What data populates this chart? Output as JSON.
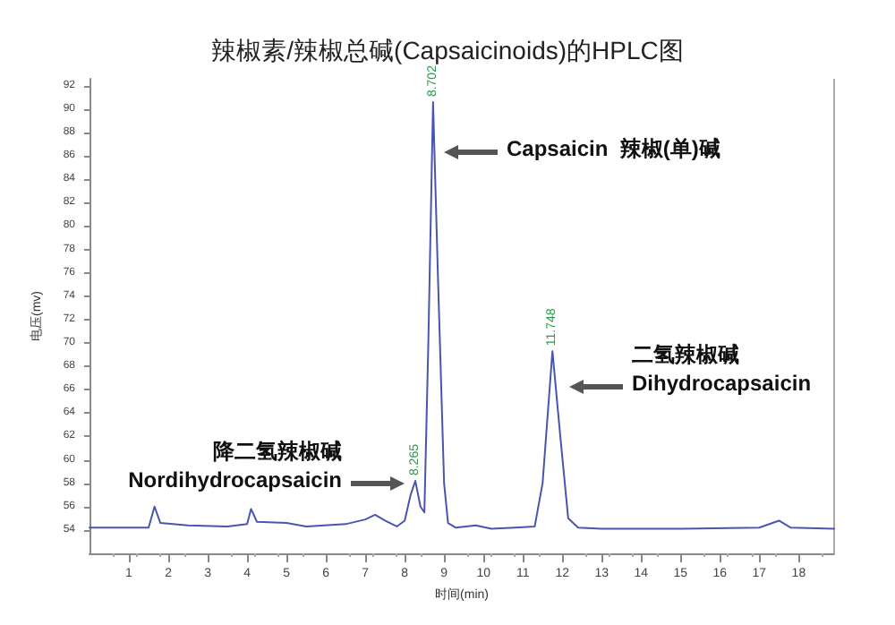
{
  "chart_data": {
    "type": "line",
    "title": "辣椒素/辣椒总碱(Capsaicinoids)的HPLC图",
    "xlabel": "时间(min)",
    "ylabel": "电压(mv)",
    "xlim": [
      0,
      18.9
    ],
    "xticks": [
      1,
      2,
      3,
      4,
      5,
      6,
      7,
      8,
      9,
      10,
      11,
      12,
      13,
      14,
      15,
      16,
      17,
      18
    ],
    "ylim": [
      52,
      92.6
    ],
    "yticks": [
      54,
      56,
      58,
      60,
      62,
      64,
      66,
      68,
      70,
      72,
      74,
      76,
      78,
      80,
      82,
      84,
      86,
      88,
      90,
      92
    ],
    "grid": false,
    "marker": "none",
    "line_style": "solid",
    "series": [
      {
        "color": "#4a55b0",
        "x": [
          0,
          1.5,
          1.65,
          1.8,
          2.5,
          3.5,
          4.0,
          4.1,
          4.25,
          5,
          5.5,
          6.5,
          7.0,
          7.25,
          7.5,
          7.8,
          8.0,
          8.15,
          8.27,
          8.4,
          8.5,
          8.6,
          8.72,
          8.85,
          9.0,
          9.1,
          9.3,
          9.8,
          10.2,
          10.8,
          11.3,
          11.5,
          11.75,
          11.95,
          12.15,
          12.4,
          13,
          15,
          17,
          17.5,
          17.8,
          18.9
        ],
        "values": [
          54.2,
          54.2,
          56.0,
          54.6,
          54.4,
          54.3,
          54.5,
          55.8,
          54.7,
          54.6,
          54.3,
          54.5,
          54.9,
          55.3,
          54.8,
          54.3,
          54.8,
          57.0,
          58.2,
          56.0,
          55.5,
          70,
          90.6,
          75,
          58,
          54.6,
          54.2,
          54.4,
          54.1,
          54.2,
          54.3,
          58,
          69.3,
          62,
          55,
          54.2,
          54.1,
          54.1,
          54.2,
          54.8,
          54.2,
          54.1
        ]
      }
    ],
    "annotations": [
      {
        "text": "8.265",
        "x": 8.27,
        "y": 58.2
      },
      {
        "text": "8.702",
        "x": 8.72,
        "y": 90.6
      },
      {
        "text": "11.748",
        "x": 11.75,
        "y": 69.3
      },
      "Capsaicin  辣椒(单)碱",
      "二氢辣椒碱\nDihydrocapsaicin",
      "降二氢辣椒碱\nNordihydrocapsaicin"
    ]
  }
}
